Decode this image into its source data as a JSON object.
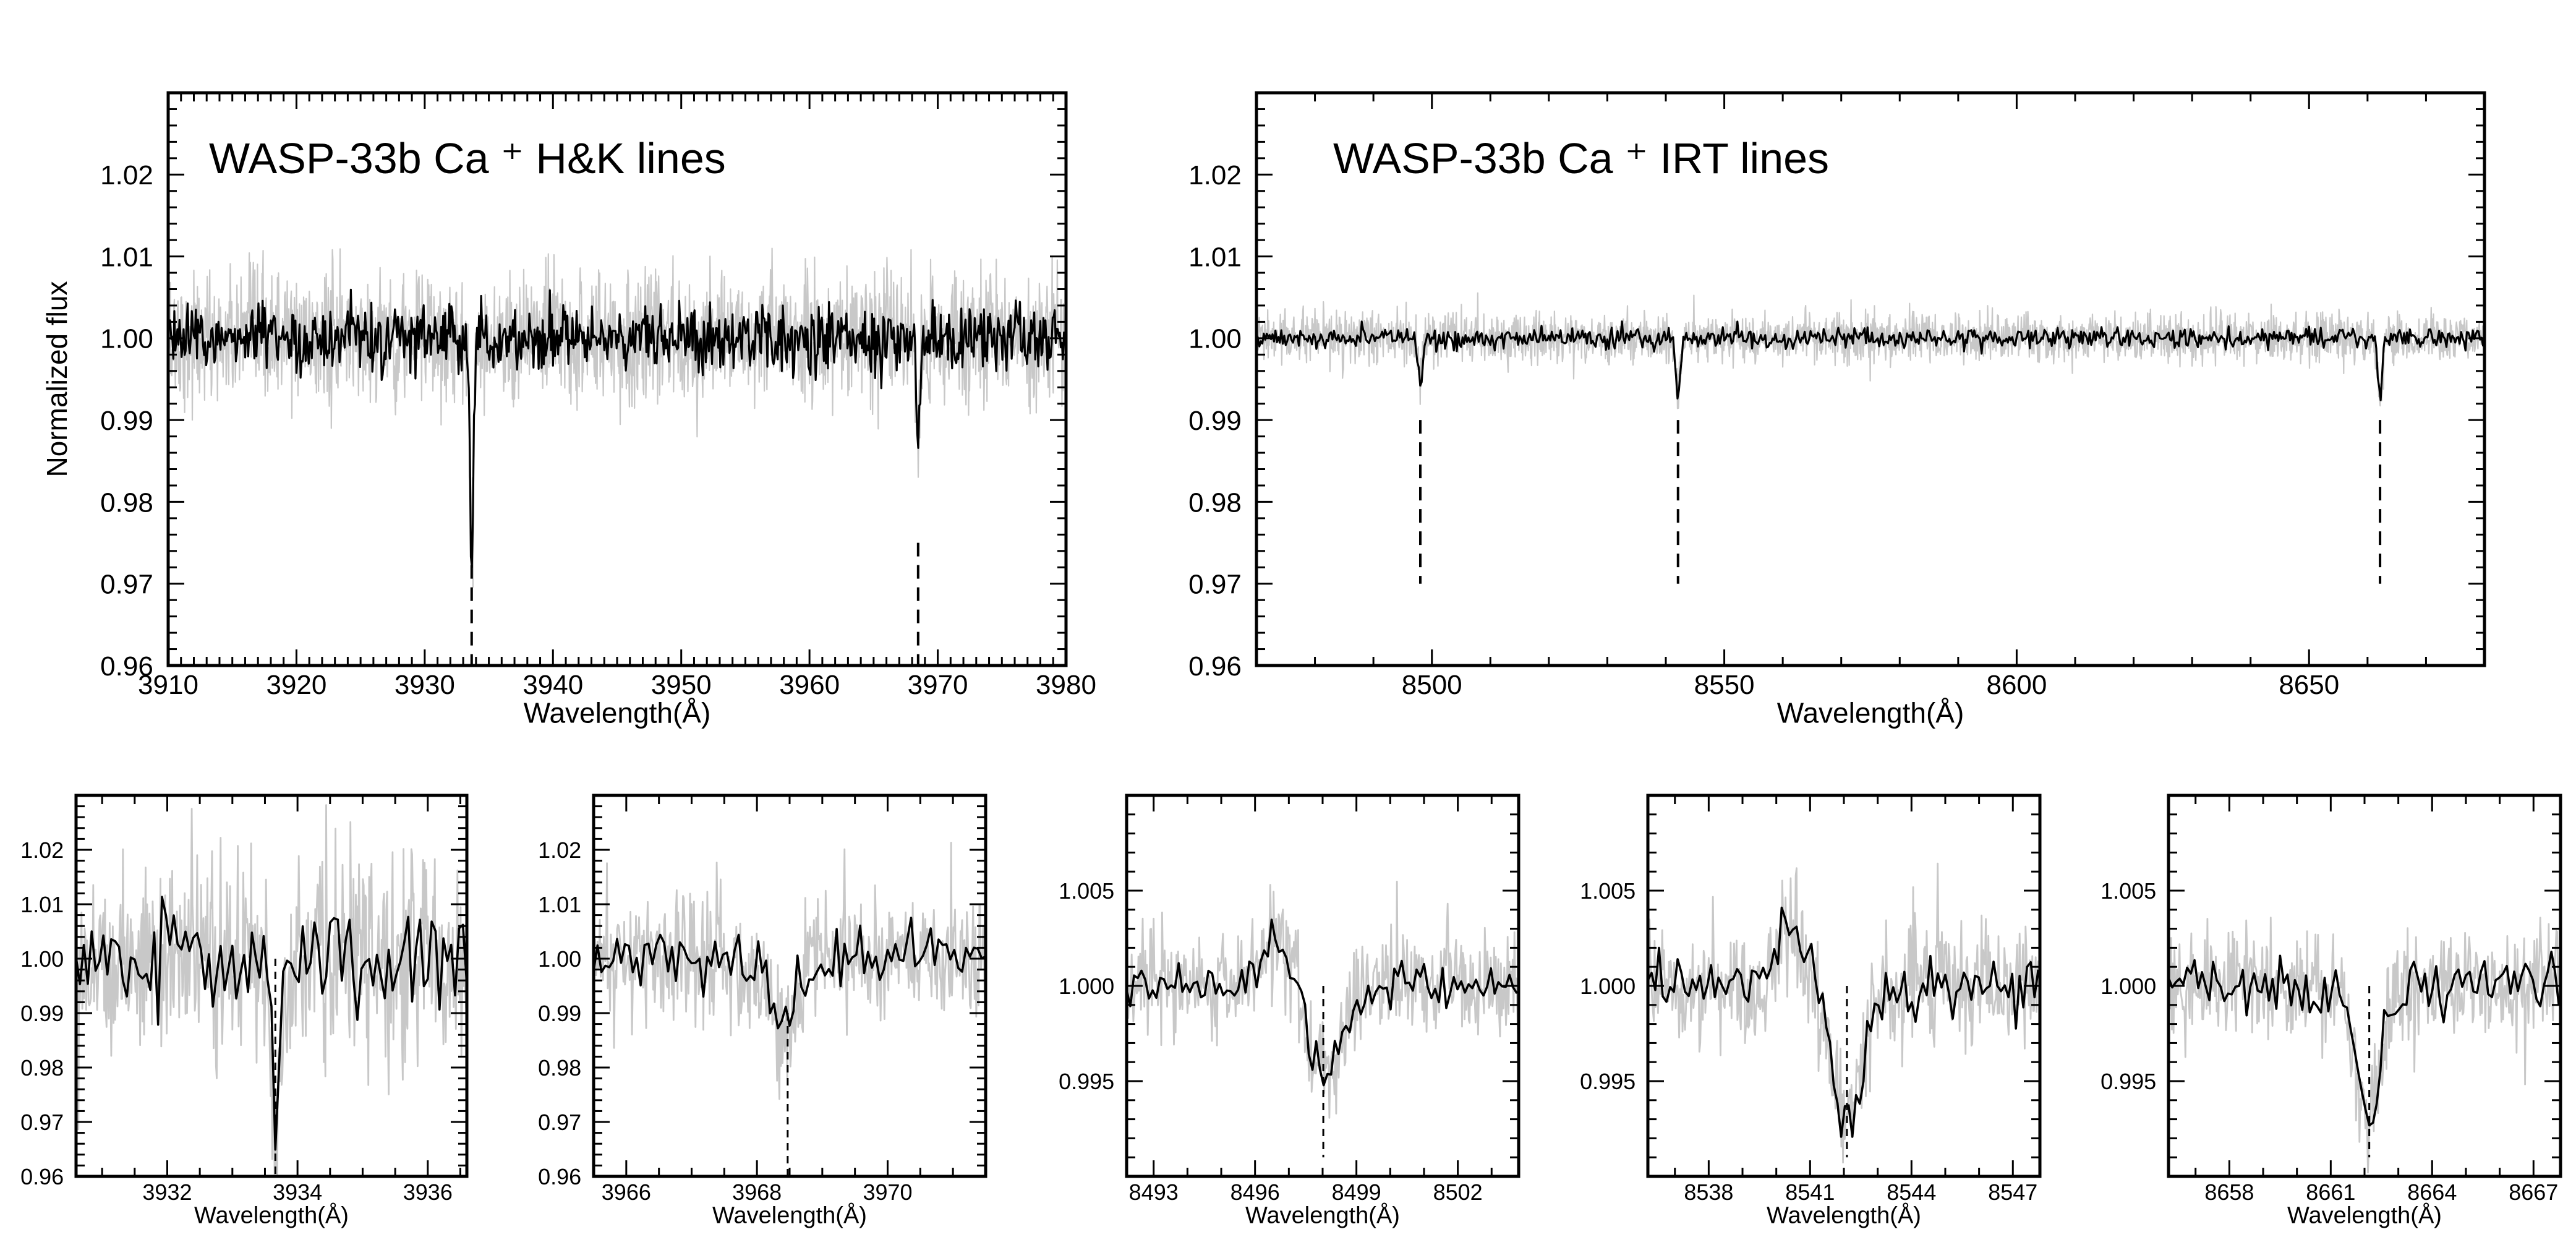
{
  "colors": {
    "raw": "#c8c8c8",
    "binned": "#000000",
    "axis": "#000000",
    "marker": "#000000"
  },
  "chart_data": [
    {
      "type": "line",
      "title": "WASP-33b Ca ⁺ H&K lines",
      "xlabel": "Wavelength(Å)",
      "ylabel": "Normalized flux",
      "xlim": [
        3910,
        3980
      ],
      "ylim": [
        0.96,
        1.03
      ],
      "xticks": [
        3910,
        3920,
        3930,
        3940,
        3950,
        3960,
        3970,
        3980
      ],
      "yticks": [
        0.96,
        0.97,
        0.98,
        0.99,
        1.0,
        1.01,
        1.02
      ],
      "line_markers": [
        3933.66,
        3968.47
      ],
      "marker_range": [
        0.96,
        0.975
      ],
      "series": [
        {
          "style": "raw",
          "noise": 0.004,
          "features": [
            [
              3933.66,
              -0.03,
              0.12
            ],
            [
              3968.47,
              -0.013,
              0.15
            ]
          ]
        },
        {
          "style": "binned",
          "noise": 0.002,
          "features": [
            [
              3933.66,
              -0.03,
              0.12
            ],
            [
              3968.47,
              -0.013,
              0.15
            ]
          ]
        }
      ]
    },
    {
      "type": "line",
      "title": "WASP-33b Ca ⁺ IRT lines",
      "xlabel": "Wavelength(Å)",
      "ylabel": "",
      "xlim": [
        8470,
        8680
      ],
      "ylim": [
        0.96,
        1.03
      ],
      "xticks": [
        8500,
        8550,
        8600,
        8650
      ],
      "yticks": [
        0.96,
        0.97,
        0.98,
        0.99,
        1.0,
        1.01,
        1.02
      ],
      "line_markers": [
        8498.02,
        8542.09,
        8662.14
      ],
      "marker_range": [
        0.97,
        0.99
      ],
      "series": [
        {
          "style": "raw",
          "noise": 0.0015,
          "features": [
            [
              8498.02,
              -0.005,
              0.4
            ],
            [
              8542.09,
              -0.007,
              0.4
            ],
            [
              8662.14,
              -0.007,
              0.4
            ]
          ]
        },
        {
          "style": "binned",
          "noise": 0.0006,
          "features": [
            [
              8498.02,
              -0.005,
              0.4
            ],
            [
              8542.09,
              -0.007,
              0.4
            ],
            [
              8662.14,
              -0.007,
              0.4
            ]
          ]
        }
      ]
    },
    {
      "type": "line",
      "title": "",
      "xlabel": "Wavelength(Å)",
      "xlim": [
        3930.6,
        3936.6
      ],
      "ylim": [
        0.96,
        1.03
      ],
      "xticks": [
        3932,
        3934,
        3936
      ],
      "yticks": [
        0.96,
        0.97,
        0.98,
        0.99,
        1.0,
        1.01,
        1.02
      ],
      "line_markers": [
        3933.66
      ],
      "marker_range": [
        0.96,
        1.0
      ],
      "series": [
        {
          "style": "raw",
          "noise": 0.009,
          "features": [
            [
              3933.66,
              -0.03,
              0.06
            ]
          ]
        },
        {
          "style": "binned",
          "noise": 0.005,
          "features": [
            [
              3933.66,
              -0.03,
              0.06
            ]
          ]
        }
      ]
    },
    {
      "type": "line",
      "title": "",
      "xlabel": "Wavelength(Å)",
      "xlim": [
        3965.5,
        3971.5
      ],
      "ylim": [
        0.96,
        1.03
      ],
      "xticks": [
        3966,
        3968,
        3970
      ],
      "yticks": [
        0.96,
        0.97,
        0.98,
        0.99,
        1.0,
        1.01,
        1.02
      ],
      "line_markers": [
        3968.47
      ],
      "marker_range": [
        0.96,
        0.99
      ],
      "series": [
        {
          "style": "raw",
          "noise": 0.006,
          "features": [
            [
              3968.4,
              -0.014,
              0.18
            ]
          ]
        },
        {
          "style": "binned",
          "noise": 0.003,
          "features": [
            [
              3968.4,
              -0.014,
              0.18
            ]
          ]
        }
      ]
    },
    {
      "type": "line",
      "title": "",
      "xlabel": "Wavelength(Å)",
      "xlim": [
        8492.2,
        8503.8
      ],
      "ylim": [
        0.99,
        1.01
      ],
      "xticks": [
        8493,
        8496,
        8499,
        8502
      ],
      "yticks": [
        0.995,
        1.0,
        1.005
      ],
      "line_markers": [
        8498.02
      ],
      "marker_range": [
        0.991,
        1.0
      ],
      "series": [
        {
          "style": "raw",
          "noise": 0.0014,
          "features": [
            [
              8498.0,
              -0.005,
              0.55
            ],
            [
              8496.8,
              0.0025,
              0.6
            ]
          ]
        },
        {
          "style": "binned",
          "noise": 0.0005,
          "features": [
            [
              8498.0,
              -0.005,
              0.55
            ],
            [
              8496.8,
              0.0025,
              0.6
            ]
          ]
        }
      ]
    },
    {
      "type": "line",
      "title": "",
      "xlabel": "Wavelength(Å)",
      "xlim": [
        8536.2,
        8547.8
      ],
      "ylim": [
        0.99,
        1.01
      ],
      "xticks": [
        8538,
        8541,
        8544,
        8547
      ],
      "yticks": [
        0.995,
        1.0,
        1.005
      ],
      "line_markers": [
        8542.09
      ],
      "marker_range": [
        0.991,
        1.0
      ],
      "series": [
        {
          "style": "raw",
          "noise": 0.0016,
          "features": [
            [
              8542.1,
              -0.007,
              0.45
            ],
            [
              8540.4,
              0.003,
              0.4
            ]
          ]
        },
        {
          "style": "binned",
          "noise": 0.0008,
          "features": [
            [
              8542.1,
              -0.007,
              0.45
            ],
            [
              8540.4,
              0.003,
              0.4
            ]
          ]
        }
      ]
    },
    {
      "type": "line",
      "title": "",
      "xlabel": "Wavelength(Å)",
      "xlim": [
        8656.2,
        8667.8
      ],
      "ylim": [
        0.99,
        1.01
      ],
      "xticks": [
        8658,
        8661,
        8664,
        8667
      ],
      "yticks": [
        0.995,
        1.0,
        1.005
      ],
      "line_markers": [
        8662.14
      ],
      "marker_range": [
        0.991,
        1.0
      ],
      "series": [
        {
          "style": "raw",
          "noise": 0.0015,
          "features": [
            [
              8662.1,
              -0.007,
              0.35
            ]
          ]
        },
        {
          "style": "binned",
          "noise": 0.0008,
          "features": [
            [
              8662.1,
              -0.007,
              0.35
            ]
          ]
        }
      ]
    }
  ]
}
